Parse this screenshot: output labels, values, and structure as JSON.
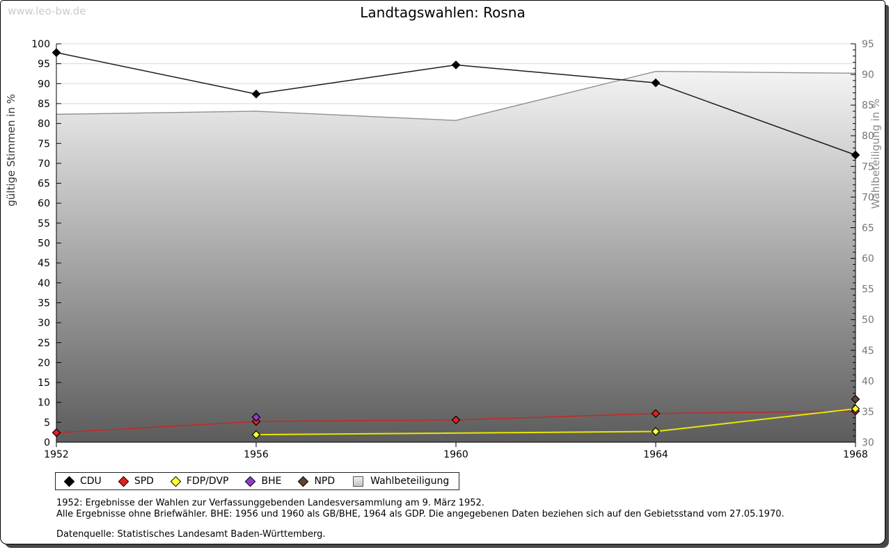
{
  "watermark": "www.leo-bw.de",
  "title": "Landtagswahlen: Rosna",
  "chart_data": {
    "type": "line",
    "title": "Landtagswahlen: Rosna",
    "x": [
      1952,
      1956,
      1960,
      1964,
      1968
    ],
    "x_tick_labels": [
      "1952",
      "1956",
      "1960",
      "1964",
      "1968"
    ],
    "left_axis": {
      "label": "gültige Stimmen in %",
      "min": 0,
      "max": 100,
      "tick_step": 5
    },
    "right_axis": {
      "label": "Wahlbeteiligung in %",
      "min": 30,
      "max": 95,
      "tick_step": 5,
      "minor_tick_step": 1
    },
    "grid": "horizontal",
    "legend_position": "bottom",
    "colors": {
      "grid": "#d9d9d9",
      "axis": "#000000",
      "right_tick_label": "#757575",
      "area_gradient_top": "#ffffff",
      "area_gradient_bottom": "#5c5c5c"
    },
    "series": [
      {
        "name": "CDU",
        "axis": "left",
        "marker": "diamond",
        "line_color": "#1a1a1a",
        "marker_color": "#000000",
        "line_width": 1.5,
        "x": [
          1952,
          1956,
          1960,
          1964,
          1968
        ],
        "values": [
          97.8,
          87.4,
          94.7,
          90.2,
          72.1
        ]
      },
      {
        "name": "SPD",
        "axis": "left",
        "marker": "diamond",
        "line_color": "#c62828",
        "marker_color": "#e51f1f",
        "line_width": 1.6,
        "x": [
          1952,
          1956,
          1960,
          1964,
          1968
        ],
        "values": [
          2.4,
          5.2,
          5.6,
          7.2,
          7.8
        ]
      },
      {
        "name": "FDP/DVP",
        "axis": "left",
        "marker": "diamond",
        "line_color": "#e8e800",
        "marker_color": "#ffff2e",
        "line_width": 2,
        "x": [
          1956,
          1964,
          1968
        ],
        "values": [
          1.9,
          2.7,
          8.4
        ]
      },
      {
        "name": "BHE",
        "axis": "left",
        "marker": "diamond",
        "line_color": "#7d2fbe",
        "marker_color": "#8e3fd0",
        "line_width": 1.5,
        "x": [
          1956
        ],
        "values": [
          6.3
        ]
      },
      {
        "name": "NPD",
        "axis": "left",
        "marker": "diamond",
        "line_color": "#553a28",
        "marker_color": "#5f4433",
        "line_width": 1.5,
        "x": [
          1968
        ],
        "values": [
          10.8
        ]
      },
      {
        "name": "Wahlbeteiligung",
        "axis": "right",
        "marker": "square",
        "area": true,
        "line_color": "#8f8f8f",
        "marker_color": "#d8d8d8",
        "line_width": 1.4,
        "x": [
          1952,
          1956,
          1960,
          1964,
          1968
        ],
        "values": [
          83.5,
          84.0,
          82.5,
          90.5,
          90.2
        ]
      }
    ]
  },
  "footnotes": [
    "1952: Ergebnisse der Wahlen zur Verfassunggebenden Landesversammlung am 9. März 1952.",
    "Alle Ergebnisse ohne Briefwähler. BHE: 1956 und 1960 als GB/BHE, 1964 als GDP. Die angegebenen Daten beziehen sich auf den Gebietsstand vom 27.05.1970.",
    "Datenquelle: Statistisches Landesamt Baden-Württemberg."
  ]
}
